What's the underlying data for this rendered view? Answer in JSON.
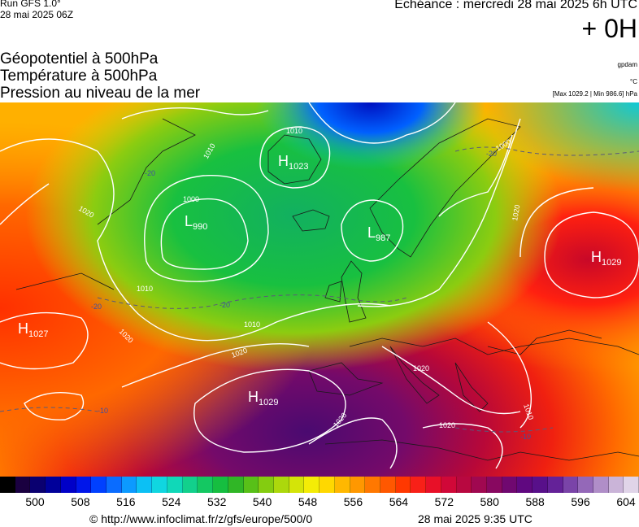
{
  "header": {
    "run_label": "Run GFS 1.0°",
    "run_date": "28 mai 2025 06Z",
    "forecast_label": "Echéance : mercredi 28 mai 2025 6h UTC",
    "offset_label": "+ 0H"
  },
  "parameters": {
    "line1": "Géopotentiel à 500hPa",
    "line2": "Température à 500hPa",
    "line3": "Pression au niveau de la mer"
  },
  "units": {
    "geopotential": "gpdam",
    "temperature": "°C",
    "pressure_range": "[Max 1029.2 | Min 986.6] hPa"
  },
  "map": {
    "pressure_centers": [
      {
        "type": "H",
        "value": "1023"
      },
      {
        "type": "L",
        "value": "990"
      },
      {
        "type": "L",
        "value": "987"
      },
      {
        "type": "H",
        "value": "1029"
      },
      {
        "type": "H",
        "value": "1027"
      },
      {
        "type": "H",
        "value": "1029"
      }
    ],
    "isobar_labels": [
      "1010",
      "1010",
      "1000",
      "1020",
      "1010",
      "1010",
      "1020",
      "1020",
      "1020",
      "1020",
      "1020",
      "1020",
      "1010",
      "1000"
    ],
    "isotherm_labels": [
      "-20",
      "-20",
      "-20",
      "-10",
      "-10",
      "-20"
    ]
  },
  "colorbar": {
    "colors": [
      "#000000",
      "#1a0040",
      "#0a0070",
      "#00009a",
      "#0000c8",
      "#0016ea",
      "#0040ff",
      "#0a6cff",
      "#0c9aff",
      "#0cc0f4",
      "#10d6e0",
      "#10d8b8",
      "#12d08c",
      "#14c862",
      "#16be40",
      "#30b626",
      "#58c018",
      "#84cc10",
      "#acd80c",
      "#d4e408",
      "#f4ec06",
      "#ffd800",
      "#ffb800",
      "#ff9800",
      "#ff7800",
      "#ff5800",
      "#ff3800",
      "#f82018",
      "#e81028",
      "#d00838",
      "#b80840",
      "#a00850",
      "#880860",
      "#700870",
      "#600880",
      "#58108a",
      "#642298",
      "#7a44a8",
      "#9468b8",
      "#b08ec8",
      "#cab4d8",
      "#e0d4e8"
    ],
    "ticks": [
      "500",
      "508",
      "516",
      "524",
      "532",
      "540",
      "548",
      "556",
      "564",
      "572",
      "580",
      "588",
      "596",
      "604"
    ]
  },
  "footer": {
    "url": "© http://www.infoclimat.fr/z/gfs/europe/500/0",
    "timestamp": "28 mai 2025  9:35 UTC"
  }
}
